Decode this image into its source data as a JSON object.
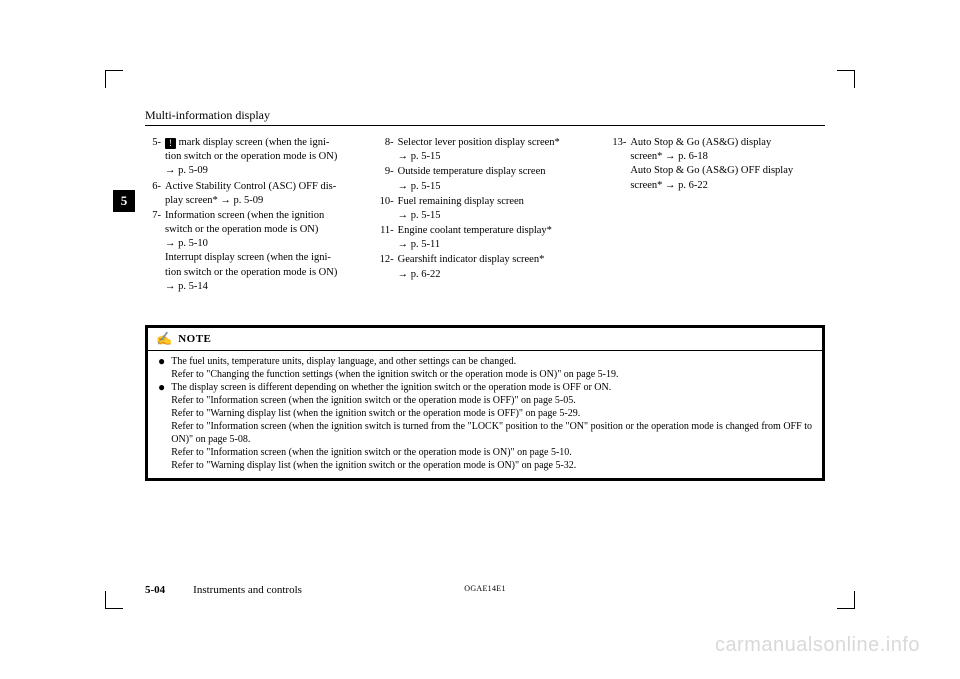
{
  "header": {
    "title": "Multi-information display"
  },
  "sideTab": "5",
  "col1": [
    {
      "n": "5-",
      "icon": "!",
      "text_a": " mark display screen (when the igni-",
      "text_b": "tion switch or the operation mode is ON)",
      "text_c": "→ p. 5-09"
    },
    {
      "n": "6-",
      "text_a": "Active Stability Control (ASC) OFF dis-",
      "text_b": "play screen*  → p. 5-09"
    },
    {
      "n": "7-",
      "text_a": "Information screen (when the ignition",
      "text_b": "switch or the operation mode is ON)",
      "text_c": "→ p. 5-10",
      "text_d": "Interrupt display screen (when the igni-",
      "text_e": "tion switch or the operation mode is ON)",
      "text_f": "→ p. 5-14"
    }
  ],
  "col2": [
    {
      "n": "8-",
      "text_a": "Selector lever position display screen*",
      "text_b": "→ p. 5-15"
    },
    {
      "n": "9-",
      "text_a": "Outside temperature display screen",
      "text_b": "→ p. 5-15"
    },
    {
      "n": "10-",
      "text_a": "Fuel remaining display screen",
      "text_b": "→ p. 5-15"
    },
    {
      "n": "11-",
      "text_a": "Engine coolant temperature display*",
      "text_b": "→ p. 5-11"
    },
    {
      "n": "12-",
      "text_a": "Gearshift indicator display screen*",
      "text_b": "→ p. 6-22"
    }
  ],
  "col3": [
    {
      "n": "13-",
      "text_a": "Auto Stop & Go (AS&G) display",
      "text_b": "screen* → p. 6-18",
      "text_c": "Auto Stop & Go (AS&G) OFF display",
      "text_d": "screen* → p. 6-22"
    }
  ],
  "note": {
    "label": "NOTE",
    "bullets": [
      {
        "lines": [
          "The fuel units, temperature units, display language, and other settings can be changed.",
          "Refer to \"Changing the function settings (when the ignition switch or the operation mode is ON)\" on page 5-19."
        ]
      },
      {
        "lines": [
          "The display screen is different depending on whether the ignition switch or the operation mode is OFF or ON.",
          "Refer to \"Information screen (when the ignition switch or the operation mode is OFF)\" on page 5-05.",
          "Refer to \"Warning display list (when the ignition switch or the operation mode is OFF)\" on page 5-29.",
          "Refer to \"Information screen (when the ignition switch is turned from the \"LOCK\" position to the \"ON\" position or the operation mode is changed from OFF to ON)\" on page 5-08.",
          "Refer to \"Information screen (when the ignition switch or the operation mode is ON)\" on page 5-10.",
          "Refer to \"Warning display list (when the ignition switch or the operation mode is ON)\" on page 5-32."
        ]
      }
    ]
  },
  "footer": {
    "page": "5-04",
    "section": "Instruments and controls",
    "code": "OGAE14E1"
  },
  "watermark": "carmanualsonline.info"
}
